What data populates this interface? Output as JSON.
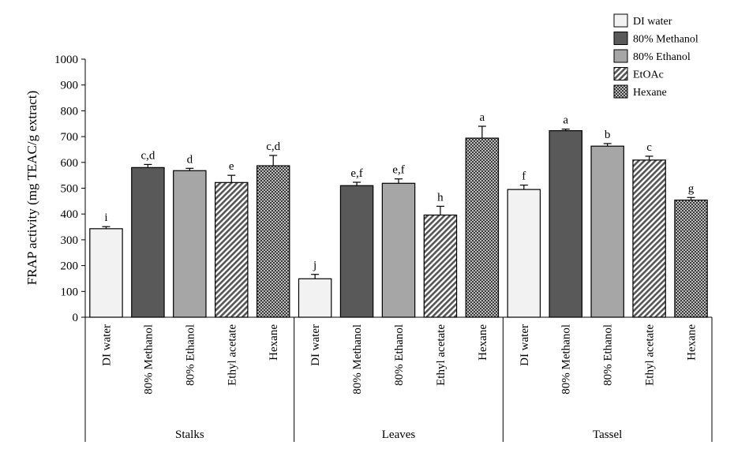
{
  "chart_data": {
    "type": "bar",
    "title": "",
    "ylabel": "FRAP activity (mg TEAC/g extract)",
    "xlabel": "",
    "ylim": [
      0,
      1000
    ],
    "ytick_step": 100,
    "grid": false,
    "legend_position": "top-right",
    "series_styles": [
      {
        "key": "DI water",
        "legend_label": "DI water",
        "fill": "#f2f2f2",
        "pattern": "none"
      },
      {
        "key": "80% Methanol",
        "legend_label": "80% Methanol",
        "fill": "#595959",
        "pattern": "none"
      },
      {
        "key": "80% Ethanol",
        "legend_label": "80% Ethanol",
        "fill": "#a6a6a6",
        "pattern": "none"
      },
      {
        "key": "Ethyl acetate",
        "legend_label": "EtOAc",
        "fill": "#ffffff",
        "pattern": "diagonal"
      },
      {
        "key": "Hexane",
        "legend_label": "Hexane",
        "fill": "#6b6b6b",
        "pattern": "dots"
      }
    ],
    "groups": [
      {
        "name": "Stalks",
        "bars": [
          {
            "category": "DI water",
            "value": 343,
            "error": 8,
            "letter": "i"
          },
          {
            "category": "80% Methanol",
            "value": 580,
            "error": 12,
            "letter": "c,d"
          },
          {
            "category": "80% Ethanol",
            "value": 568,
            "error": 9,
            "letter": "d"
          },
          {
            "category": "Ethyl acetate",
            "value": 522,
            "error": 28,
            "letter": "e"
          },
          {
            "category": "Hexane",
            "value": 587,
            "error": 40,
            "letter": "c,d"
          }
        ]
      },
      {
        "name": "Leaves",
        "bars": [
          {
            "category": "DI water",
            "value": 149,
            "error": 17,
            "letter": "j"
          },
          {
            "category": "80% Methanol",
            "value": 510,
            "error": 13,
            "letter": "e,f"
          },
          {
            "category": "80% Ethanol",
            "value": 519,
            "error": 17,
            "letter": "e,f"
          },
          {
            "category": "Ethyl acetate",
            "value": 396,
            "error": 34,
            "letter": "h"
          },
          {
            "category": "Hexane",
            "value": 694,
            "error": 46,
            "letter": "a"
          }
        ]
      },
      {
        "name": "Tassel",
        "bars": [
          {
            "category": "DI water",
            "value": 495,
            "error": 17,
            "letter": "f"
          },
          {
            "category": "80% Methanol",
            "value": 723,
            "error": 6,
            "letter": "a"
          },
          {
            "category": "80% Ethanol",
            "value": 663,
            "error": 10,
            "letter": "b"
          },
          {
            "category": "Ethyl acetate",
            "value": 609,
            "error": 15,
            "letter": "c"
          },
          {
            "category": "Hexane",
            "value": 454,
            "error": 10,
            "letter": "g"
          }
        ]
      }
    ]
  }
}
